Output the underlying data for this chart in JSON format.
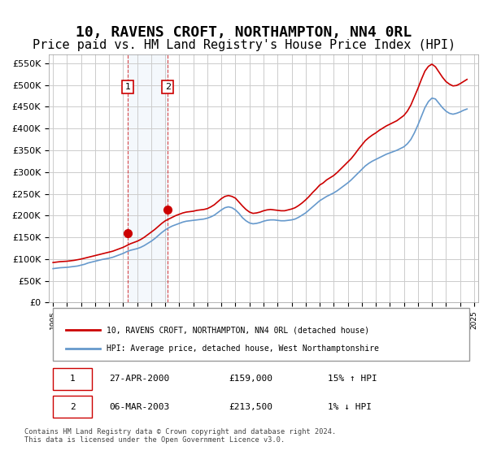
{
  "title": "10, RAVENS CROFT, NORTHAMPTON, NN4 0RL",
  "subtitle": "Price paid vs. HM Land Registry's House Price Index (HPI)",
  "title_fontsize": 13,
  "subtitle_fontsize": 11,
  "ylabel": "",
  "xlabel": "",
  "ylim": [
    0,
    570000
  ],
  "yticks": [
    0,
    50000,
    100000,
    150000,
    200000,
    250000,
    300000,
    350000,
    400000,
    450000,
    500000,
    550000
  ],
  "ytick_labels": [
    "£0",
    "£50K",
    "£100K",
    "£150K",
    "£200K",
    "£250K",
    "£300K",
    "£350K",
    "£400K",
    "£450K",
    "£500K",
    "£550K"
  ],
  "xticks": [
    1995,
    1996,
    1997,
    1998,
    1999,
    2000,
    2001,
    2002,
    2003,
    2004,
    2005,
    2006,
    2007,
    2008,
    2009,
    2010,
    2011,
    2012,
    2013,
    2014,
    2015,
    2016,
    2017,
    2018,
    2019,
    2020,
    2021,
    2022,
    2023,
    2024,
    2025
  ],
  "bg_color": "#ffffff",
  "grid_color": "#cccccc",
  "line_red_color": "#cc0000",
  "line_blue_color": "#6699cc",
  "sale1_x": 2000.32,
  "sale1_y": 159000,
  "sale2_x": 2003.18,
  "sale2_y": 213500,
  "legend_red_label": "10, RAVENS CROFT, NORTHAMPTON, NN4 0RL (detached house)",
  "legend_blue_label": "HPI: Average price, detached house, West Northamptonshire",
  "table_rows": [
    {
      "num": "1",
      "date": "27-APR-2000",
      "price": "£159,000",
      "hpi": "15% ↑ HPI"
    },
    {
      "num": "2",
      "date": "06-MAR-2003",
      "price": "£213,500",
      "hpi": "1% ↓ HPI"
    }
  ],
  "footer": "Contains HM Land Registry data © Crown copyright and database right 2024.\nThis data is licensed under the Open Government Licence v3.0.",
  "hpi_x": [
    1995,
    1995.25,
    1995.5,
    1995.75,
    1996,
    1996.25,
    1996.5,
    1996.75,
    1997,
    1997.25,
    1997.5,
    1997.75,
    1998,
    1998.25,
    1998.5,
    1998.75,
    1999,
    1999.25,
    1999.5,
    1999.75,
    2000,
    2000.25,
    2000.5,
    2000.75,
    2001,
    2001.25,
    2001.5,
    2001.75,
    2002,
    2002.25,
    2002.5,
    2002.75,
    2003,
    2003.25,
    2003.5,
    2003.75,
    2004,
    2004.25,
    2004.5,
    2004.75,
    2005,
    2005.25,
    2005.5,
    2005.75,
    2006,
    2006.25,
    2006.5,
    2006.75,
    2007,
    2007.25,
    2007.5,
    2007.75,
    2008,
    2008.25,
    2008.5,
    2008.75,
    2009,
    2009.25,
    2009.5,
    2009.75,
    2010,
    2010.25,
    2010.5,
    2010.75,
    2011,
    2011.25,
    2011.5,
    2011.75,
    2012,
    2012.25,
    2012.5,
    2012.75,
    2013,
    2013.25,
    2013.5,
    2013.75,
    2014,
    2014.25,
    2014.5,
    2014.75,
    2015,
    2015.25,
    2015.5,
    2015.75,
    2016,
    2016.25,
    2016.5,
    2016.75,
    2017,
    2017.25,
    2017.5,
    2017.75,
    2018,
    2018.25,
    2018.5,
    2018.75,
    2019,
    2019.25,
    2019.5,
    2019.75,
    2020,
    2020.25,
    2020.5,
    2020.75,
    2021,
    2021.25,
    2021.5,
    2021.75,
    2022,
    2022.25,
    2022.5,
    2022.75,
    2023,
    2023.25,
    2023.5,
    2023.75,
    2024,
    2024.25,
    2024.5
  ],
  "hpi_y": [
    78000,
    79000,
    80000,
    80500,
    81000,
    82000,
    83000,
    84000,
    86000,
    88000,
    91000,
    93000,
    95000,
    97000,
    99000,
    100500,
    102000,
    104000,
    107000,
    110000,
    113000,
    117000,
    120000,
    122000,
    124000,
    127000,
    131000,
    136000,
    141000,
    147000,
    154000,
    161000,
    167000,
    172000,
    176000,
    179000,
    182000,
    185000,
    187000,
    188000,
    189000,
    190000,
    191000,
    192000,
    194000,
    197000,
    201000,
    207000,
    213000,
    218000,
    220000,
    218000,
    213000,
    205000,
    195000,
    188000,
    183000,
    181000,
    182000,
    184000,
    187000,
    189000,
    190000,
    190000,
    189000,
    188000,
    188000,
    189000,
    190000,
    192000,
    196000,
    201000,
    206000,
    213000,
    220000,
    227000,
    234000,
    239000,
    244000,
    248000,
    252000,
    257000,
    263000,
    269000,
    275000,
    282000,
    290000,
    298000,
    306000,
    314000,
    320000,
    325000,
    329000,
    333000,
    337000,
    341000,
    344000,
    347000,
    350000,
    354000,
    358000,
    365000,
    375000,
    390000,
    408000,
    428000,
    448000,
    462000,
    470000,
    468000,
    458000,
    448000,
    440000,
    435000,
    433000,
    435000,
    438000,
    442000,
    445000
  ],
  "red_x": [
    1995,
    1995.25,
    1995.5,
    1995.75,
    1996,
    1996.25,
    1996.5,
    1996.75,
    1997,
    1997.25,
    1997.5,
    1997.75,
    1998,
    1998.25,
    1998.5,
    1998.75,
    1999,
    1999.25,
    1999.5,
    1999.75,
    2000,
    2000.25,
    2000.5,
    2000.75,
    2001,
    2001.25,
    2001.5,
    2001.75,
    2002,
    2002.25,
    2002.5,
    2002.75,
    2003,
    2003.25,
    2003.5,
    2003.75,
    2004,
    2004.25,
    2004.5,
    2004.75,
    2005,
    2005.25,
    2005.5,
    2005.75,
    2006,
    2006.25,
    2006.5,
    2006.75,
    2007,
    2007.25,
    2007.5,
    2007.75,
    2008,
    2008.25,
    2008.5,
    2008.75,
    2009,
    2009.25,
    2009.5,
    2009.75,
    2010,
    2010.25,
    2010.5,
    2010.75,
    2011,
    2011.25,
    2011.5,
    2011.75,
    2012,
    2012.25,
    2012.5,
    2012.75,
    2013,
    2013.25,
    2013.5,
    2013.75,
    2014,
    2014.25,
    2014.5,
    2014.75,
    2015,
    2015.25,
    2015.5,
    2015.75,
    2016,
    2016.25,
    2016.5,
    2016.75,
    2017,
    2017.25,
    2017.5,
    2017.75,
    2018,
    2018.25,
    2018.5,
    2018.75,
    2019,
    2019.25,
    2019.5,
    2019.75,
    2020,
    2020.25,
    2020.5,
    2020.75,
    2021,
    2021.25,
    2021.5,
    2021.75,
    2022,
    2022.25,
    2022.5,
    2022.75,
    2023,
    2023.25,
    2023.5,
    2023.75,
    2024,
    2024.25,
    2024.5
  ],
  "red_y": [
    92000,
    93000,
    94000,
    94500,
    95000,
    96000,
    97000,
    98500,
    100000,
    102000,
    104000,
    106000,
    108000,
    110000,
    112000,
    114000,
    116000,
    118000,
    121000,
    124000,
    127000,
    131000,
    135000,
    138000,
    141000,
    145000,
    150000,
    156000,
    162000,
    168000,
    175000,
    182000,
    188000,
    192000,
    196000,
    200000,
    203000,
    206000,
    208000,
    209000,
    210000,
    212000,
    213000,
    214000,
    216000,
    220000,
    225000,
    232000,
    239000,
    244000,
    246000,
    244000,
    240000,
    231000,
    222000,
    214000,
    208000,
    205000,
    206000,
    208000,
    211000,
    213000,
    214000,
    213000,
    212000,
    211000,
    211000,
    213000,
    215000,
    218000,
    223000,
    229000,
    236000,
    244000,
    253000,
    261000,
    270000,
    275000,
    282000,
    287000,
    292000,
    299000,
    307000,
    315000,
    323000,
    331000,
    341000,
    352000,
    362000,
    372000,
    379000,
    385000,
    390000,
    396000,
    401000,
    406000,
    410000,
    414000,
    418000,
    424000,
    430000,
    440000,
    454000,
    473000,
    492000,
    513000,
    532000,
    543000,
    548000,
    542000,
    530000,
    518000,
    508000,
    502000,
    498000,
    499000,
    503000,
    508000,
    513000
  ]
}
